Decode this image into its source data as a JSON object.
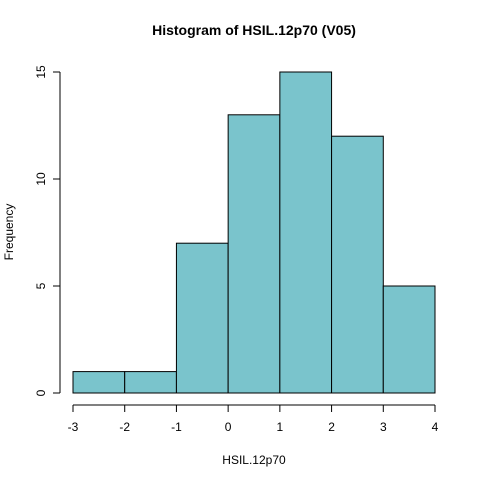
{
  "chart_data": {
    "type": "histogram",
    "title": "Histogram of HSIL.12p70 (V05)",
    "x_label": "HSIL.12p70",
    "y_label": "Frequency",
    "bins": [
      -3,
      -2,
      -1,
      0,
      1,
      2,
      3,
      4
    ],
    "values": [
      1,
      1,
      7,
      13,
      15,
      12,
      5
    ],
    "color": "#7ac4cc",
    "xlim": [
      -3,
      4
    ],
    "xticks": [
      -3,
      -2,
      -1,
      0,
      1,
      2,
      3,
      4
    ],
    "ylim": [
      0,
      15
    ],
    "yticks": [
      0,
      5,
      10,
      15
    ]
  }
}
